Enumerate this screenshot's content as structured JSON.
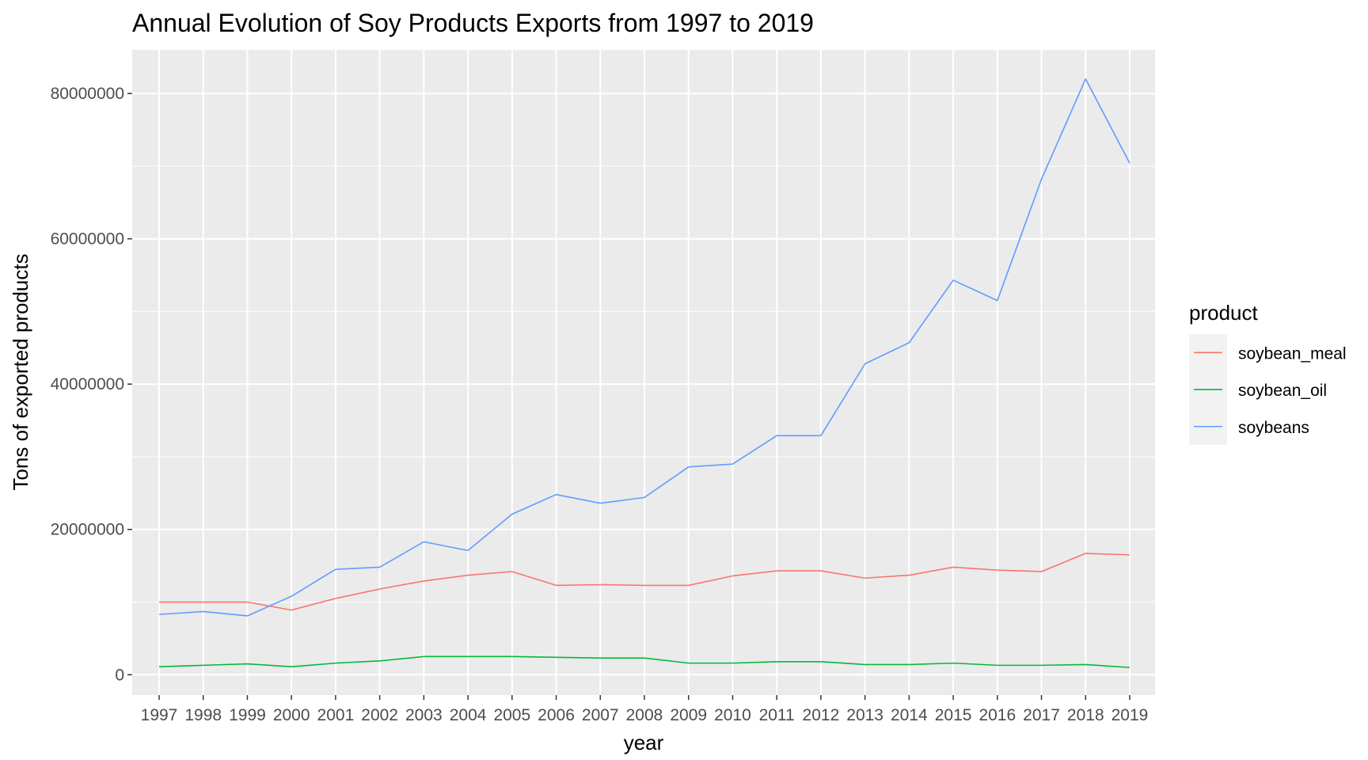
{
  "chart_data": {
    "type": "line",
    "title": "Annual Evolution of Soy Products Exports from 1997 to 2019",
    "xlabel": "year",
    "ylabel": "Tons of exported products",
    "categories": [
      "1997",
      "1998",
      "1999",
      "2000",
      "2001",
      "2002",
      "2003",
      "2004",
      "2005",
      "2006",
      "2007",
      "2008",
      "2009",
      "2010",
      "2011",
      "2012",
      "2013",
      "2014",
      "2015",
      "2016",
      "2017",
      "2018",
      "2019"
    ],
    "y_ticks": [
      "0",
      "20000000",
      "40000000",
      "60000000",
      "80000000"
    ],
    "ylim": [
      -2800000,
      86000000
    ],
    "grid": true,
    "legend": {
      "title": "product",
      "position": "right"
    },
    "series": [
      {
        "name": "soybean_meal",
        "color": "#F8766D",
        "values": [
          10000000,
          10000000,
          10000000,
          8900000,
          10500000,
          11800000,
          12900000,
          13700000,
          14200000,
          12300000,
          12400000,
          12300000,
          12300000,
          13600000,
          14300000,
          14300000,
          13300000,
          13700000,
          14800000,
          14400000,
          14200000,
          16700000,
          16500000
        ]
      },
      {
        "name": "soybean_oil",
        "color": "#00BA38",
        "values": [
          1100000,
          1300000,
          1500000,
          1100000,
          1600000,
          1900000,
          2500000,
          2500000,
          2500000,
          2400000,
          2300000,
          2300000,
          1600000,
          1600000,
          1800000,
          1800000,
          1400000,
          1400000,
          1600000,
          1300000,
          1300000,
          1400000,
          1000000
        ]
      },
      {
        "name": "soybeans",
        "color": "#619CFF",
        "values": [
          8300000,
          8700000,
          8100000,
          10800000,
          14500000,
          14800000,
          18300000,
          17100000,
          22100000,
          24800000,
          23600000,
          24400000,
          28600000,
          29000000,
          32900000,
          32900000,
          42800000,
          45700000,
          54300000,
          51500000,
          68200000,
          82000000,
          70400000
        ]
      }
    ]
  }
}
